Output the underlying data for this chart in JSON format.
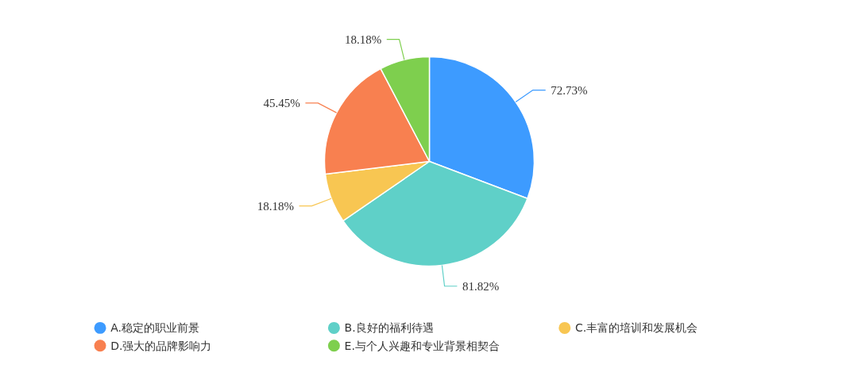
{
  "chart_data": {
    "type": "pie",
    "categories": [
      "A.稳定的职业前景",
      "B.良好的福利待遇",
      "C.丰富的培训和发展机会",
      "D.强大的品牌影响力",
      "E.与个人兴趣和专业背景相契合"
    ],
    "values": [
      72.73,
      81.82,
      18.18,
      45.45,
      18.18
    ],
    "value_labels": [
      "72.73%",
      "81.82%",
      "18.18%",
      "45.45%",
      "18.18%"
    ],
    "colors": [
      "#3d9bff",
      "#5fd0c8",
      "#f8c652",
      "#f88050",
      "#7ecf4e"
    ],
    "legend": "bottom"
  }
}
